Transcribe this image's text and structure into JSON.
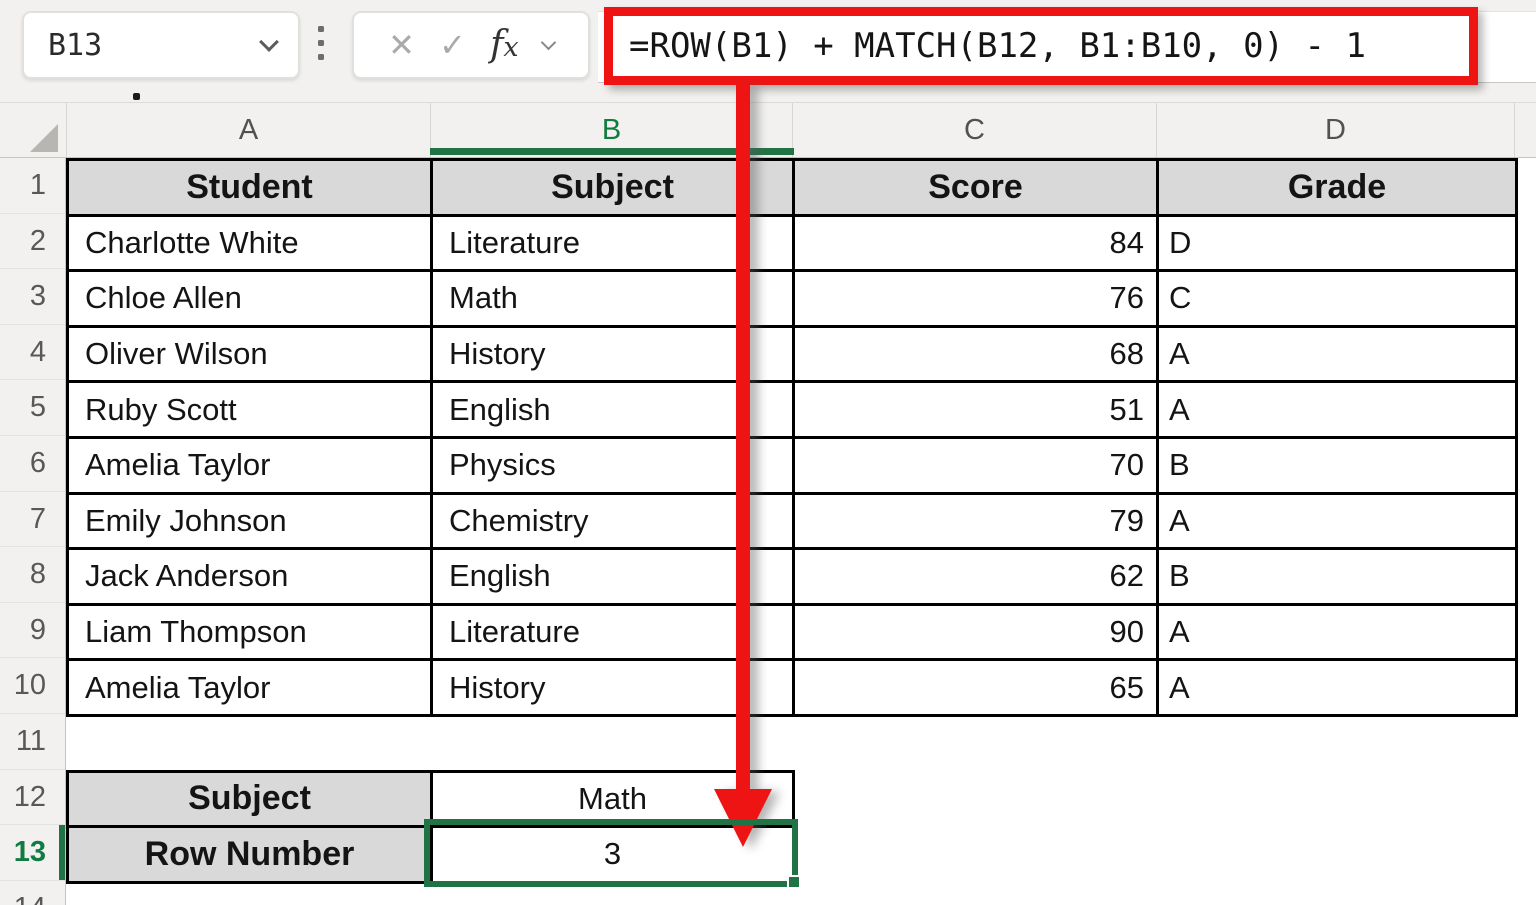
{
  "formula_bar": {
    "cell_reference": "B13",
    "formula": "=ROW(B1) + MATCH(B12, B1:B10, 0) - 1",
    "cancel_label": "✕",
    "enter_label": "✓",
    "fx_label_f": "f",
    "fx_label_x": "x"
  },
  "grid": {
    "column_letters": [
      "A",
      "B",
      "C",
      "D"
    ],
    "selected_column_letter": "B",
    "row_numbers": [
      "1",
      "2",
      "3",
      "4",
      "5",
      "6",
      "7",
      "8",
      "9",
      "10",
      "11",
      "12",
      "13",
      "14"
    ],
    "selected_row_number": "13",
    "selected_cell": "B13"
  },
  "table": {
    "headers": [
      "Student",
      "Subject",
      "Score",
      "Grade"
    ],
    "rows": [
      [
        "Charlotte White",
        "Literature",
        "84",
        "D"
      ],
      [
        "Chloe Allen",
        "Math",
        "76",
        "C"
      ],
      [
        "Oliver Wilson",
        "History",
        "68",
        "A"
      ],
      [
        "Ruby Scott",
        "English",
        "51",
        "A"
      ],
      [
        "Amelia Taylor",
        "Physics",
        "70",
        "B"
      ],
      [
        "Emily Johnson",
        "Chemistry",
        "79",
        "A"
      ],
      [
        "Jack Anderson",
        "English",
        "62",
        "B"
      ],
      [
        "Liam Thompson",
        "Literature",
        "90",
        "A"
      ],
      [
        "Amelia Taylor",
        "History",
        "65",
        "A"
      ]
    ]
  },
  "lookup_table": {
    "rows": [
      {
        "label": "Subject",
        "value": "Math"
      },
      {
        "label": "Row Number",
        "value": "3"
      }
    ]
  },
  "colors": {
    "accent_green": "#217346",
    "annotation_red": "#ee1414",
    "header_fill": "#d9d9d9",
    "chrome_bg": "#f2f1ef"
  }
}
